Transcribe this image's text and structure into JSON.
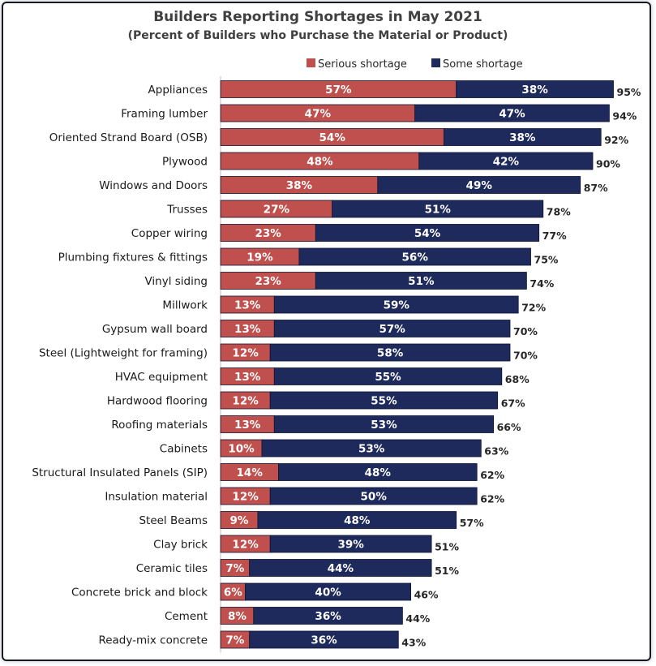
{
  "chart_data": {
    "type": "bar",
    "orientation": "horizontal",
    "stacked": true,
    "title": "Builders Reporting Shortages in May 2021",
    "subtitle": "(Percent of Builders who Purchase the Material or Product)",
    "legend_position": "top-right",
    "grid": false,
    "xlim": [
      0,
      100
    ],
    "categories": [
      "Appliances",
      "Framing lumber",
      "Oriented Strand Board (OSB)",
      "Plywood",
      "Windows and Doors",
      "Trusses",
      "Copper wiring",
      "Plumbing fixtures & fittings",
      "Vinyl siding",
      "Millwork",
      "Gypsum wall board",
      "Steel (Lightweight for framing)",
      "HVAC equipment",
      "Hardwood flooring",
      "Roofing materials",
      "Cabinets",
      "Structural Insulated Panels (SIP)",
      "Insulation material",
      "Steel Beams",
      "Clay brick",
      "Ceramic tiles",
      "Concrete brick and block",
      "Cement",
      "Ready-mix concrete"
    ],
    "series": [
      {
        "name": "Serious shortage",
        "color": "#c0504d",
        "values": [
          57,
          47,
          54,
          48,
          38,
          27,
          23,
          19,
          23,
          13,
          13,
          12,
          13,
          12,
          13,
          10,
          14,
          12,
          9,
          12,
          7,
          6,
          8,
          7
        ]
      },
      {
        "name": "Some shortage",
        "color": "#1f2a5c",
        "values": [
          38,
          47,
          38,
          42,
          49,
          51,
          54,
          56,
          51,
          59,
          57,
          58,
          55,
          55,
          53,
          53,
          48,
          50,
          48,
          39,
          44,
          40,
          36,
          36
        ]
      }
    ],
    "totals": [
      95,
      94,
      92,
      90,
      87,
      78,
      77,
      75,
      74,
      72,
      70,
      70,
      68,
      67,
      66,
      63,
      62,
      62,
      57,
      51,
      51,
      46,
      44,
      43
    ],
    "value_suffix": "%"
  }
}
